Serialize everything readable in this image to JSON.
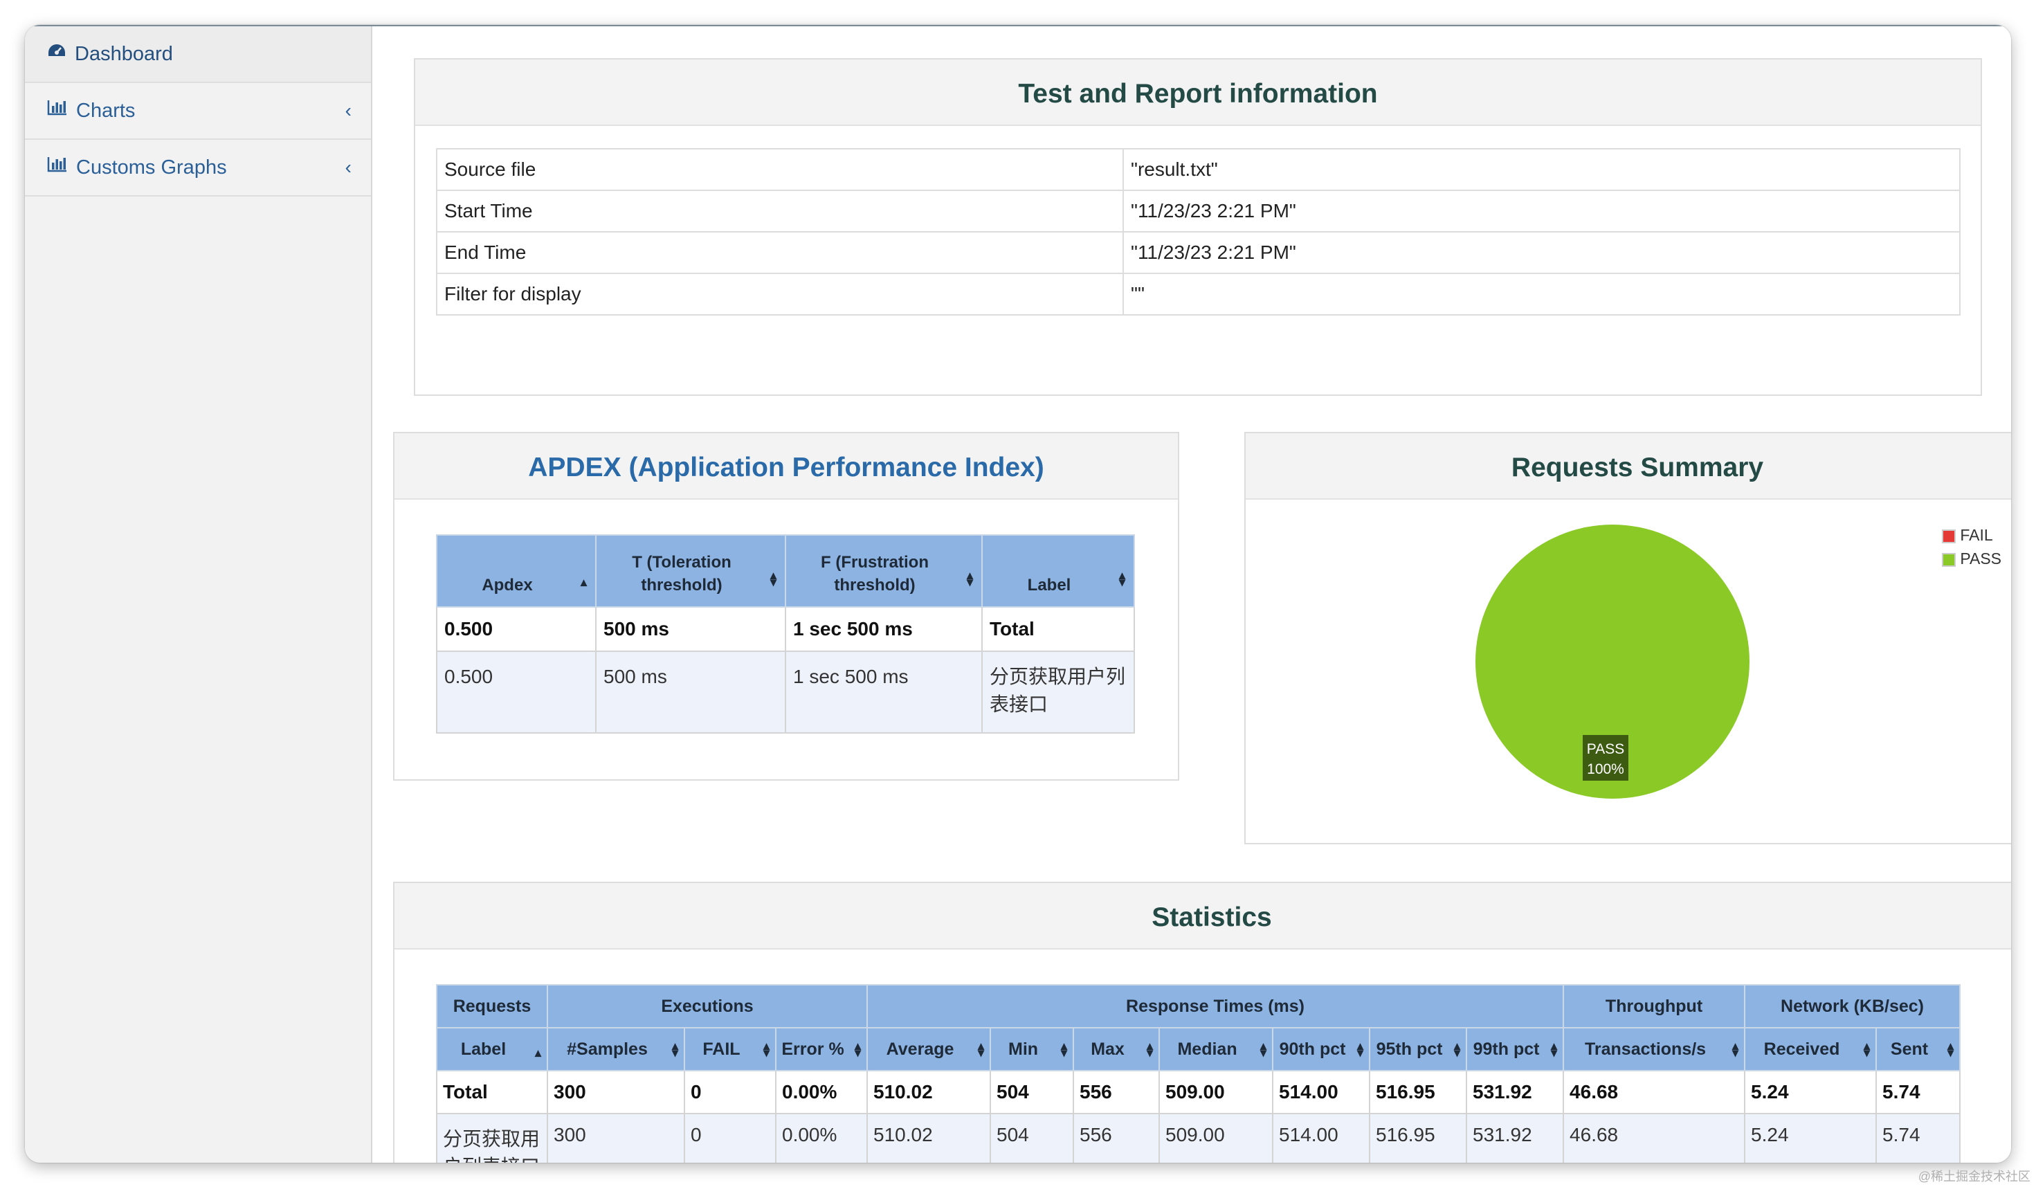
{
  "sidebar": {
    "items": [
      {
        "label": "Dashboard",
        "icon": "dashboard-icon"
      },
      {
        "label": "Charts",
        "icon": "bar-chart-icon"
      },
      {
        "label": "Customs Graphs",
        "icon": "bar-chart-icon"
      }
    ]
  },
  "info": {
    "title": "Test and Report information",
    "rows": [
      {
        "key": "Source file",
        "value": "\"result.txt\""
      },
      {
        "key": "Start Time",
        "value": "\"11/23/23 2:21 PM\""
      },
      {
        "key": "End Time",
        "value": "\"11/23/23 2:21 PM\""
      },
      {
        "key": "Filter for display",
        "value": "\"\""
      }
    ]
  },
  "apdex": {
    "title": "APDEX (Application Performance Index)",
    "headers": [
      "Apdex",
      "T (Toleration threshold)",
      "F (Frustration threshold)",
      "Label"
    ],
    "header_lines": [
      [
        "Apdex"
      ],
      [
        "T (Toleration",
        "threshold)"
      ],
      [
        "F (Frustration",
        "threshold)"
      ],
      [
        "Label"
      ]
    ],
    "total": [
      "0.500",
      "500 ms",
      "1 sec 500 ms",
      "Total"
    ],
    "rows": [
      [
        "0.500",
        "500 ms",
        "1 sec 500 ms",
        "分页获取用户列表接口"
      ]
    ]
  },
  "summary": {
    "title": "Requests Summary",
    "legend": [
      {
        "name": "FAIL",
        "color": "#e53935"
      },
      {
        "name": "PASS",
        "color": "#8ac926"
      }
    ],
    "pie_label": "PASS",
    "pie_percent": "100%",
    "chart_data": {
      "type": "pie",
      "labels": [
        "FAIL",
        "PASS"
      ],
      "values": [
        0,
        100
      ]
    }
  },
  "statistics": {
    "title": "Statistics",
    "groups": [
      {
        "label": "Requests",
        "span": 1
      },
      {
        "label": "Executions",
        "span": 3
      },
      {
        "label": "Response Times (ms)",
        "span": 7
      },
      {
        "label": "Throughput",
        "span": 1
      },
      {
        "label": "Network (KB/sec)",
        "span": 2
      }
    ],
    "columns": [
      "Label",
      "#Samples",
      "FAIL",
      "Error %",
      "Average",
      "Min",
      "Max",
      "Median",
      "90th pct",
      "95th pct",
      "99th pct",
      "Transactions/s",
      "Received",
      "Sent"
    ],
    "total": [
      "Total",
      "300",
      "0",
      "0.00%",
      "510.02",
      "504",
      "556",
      "509.00",
      "514.00",
      "516.95",
      "531.92",
      "46.68",
      "5.24",
      "5.74"
    ],
    "rows": [
      [
        "分页获取用户列表接口",
        "300",
        "0",
        "0.00%",
        "510.02",
        "504",
        "556",
        "509.00",
        "514.00",
        "516.95",
        "531.92",
        "46.68",
        "5.24",
        "5.74"
      ]
    ]
  },
  "watermark": "@稀土掘金技术社区"
}
